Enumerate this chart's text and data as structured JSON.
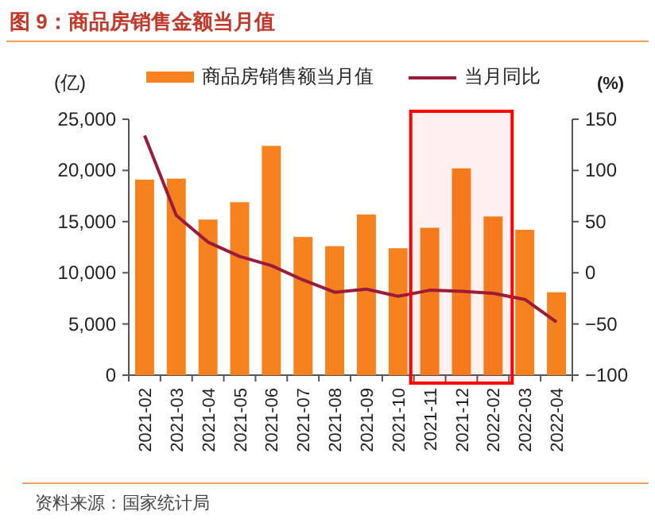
{
  "chart_data": {
    "type": "bar",
    "title": "图 9：商品房销售金额当月值",
    "categories": [
      "2021-02",
      "2021-03",
      "2021-04",
      "2021-05",
      "2021-06",
      "2021-07",
      "2021-08",
      "2021-09",
      "2021-10",
      "2021-11",
      "2021-12",
      "2022-02",
      "2022-03",
      "2022-04"
    ],
    "ylabel": "(亿)",
    "y2label": "(%)",
    "series": [
      {
        "name": "商品房销售额当月值",
        "color": "#f5821f",
        "values": [
          19100,
          19200,
          15200,
          16900,
          22400,
          13500,
          12600,
          15700,
          12400,
          14400,
          20200,
          15500,
          14200,
          8100
        ]
      },
      {
        "name": "当月同比",
        "type": "line",
        "axis": "y2",
        "color": "#9b1b3b",
        "values": [
          134,
          56,
          30,
          16,
          7,
          -7,
          -19,
          -16,
          -23,
          -17,
          -18,
          -20,
          -26,
          -48
        ]
      }
    ],
    "ylim": [
      0,
      25000
    ],
    "yticks": [
      {
        "value": 0,
        "label": "0"
      },
      {
        "value": 5000,
        "label": "5,000"
      },
      {
        "value": 10000,
        "label": "10,000"
      },
      {
        "value": 15000,
        "label": "15,000"
      },
      {
        "value": 20000,
        "label": "20,000"
      },
      {
        "value": 25000,
        "label": "25,000"
      }
    ],
    "y2lim": [
      -100,
      150
    ],
    "y2ticks": [
      -100,
      -50,
      0,
      50,
      100,
      150
    ],
    "bands": [
      {
        "axis": "x",
        "from": "2021-11",
        "to": "2022-02",
        "color": "#ff0000"
      }
    ],
    "legend": "top",
    "grid": false,
    "annotations": [
      "资料来源：国家统计局"
    ]
  }
}
